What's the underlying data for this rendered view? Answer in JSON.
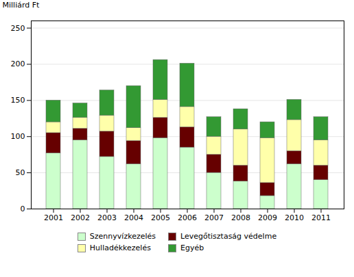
{
  "chart_data": {
    "type": "bar",
    "stacked": true,
    "ylabel": "Milliárd Ft",
    "categories": [
      "2001",
      "2002",
      "2003",
      "2004",
      "2005",
      "2006",
      "2007",
      "2008",
      "2009",
      "2010",
      "2011"
    ],
    "series": [
      {
        "name": "Szennyvízkezelés",
        "color": "#ccffcc",
        "values": [
          77,
          95,
          72,
          62,
          98,
          85,
          50,
          38,
          18,
          62,
          40
        ]
      },
      {
        "name": "Levegőtisztaság védelme",
        "color": "#660000",
        "values": [
          28,
          16,
          35,
          32,
          28,
          28,
          25,
          22,
          18,
          18,
          20
        ]
      },
      {
        "name": "Hulladékkezelés",
        "color": "#ffffaa",
        "values": [
          15,
          15,
          22,
          18,
          25,
          28,
          25,
          50,
          62,
          43,
          35
        ]
      },
      {
        "name": "Egyéb",
        "color": "#339933",
        "values": [
          30,
          20,
          35,
          58,
          55,
          60,
          27,
          28,
          22,
          28,
          32
        ]
      }
    ],
    "ylim": [
      0,
      260
    ],
    "yticks": [
      0,
      50,
      100,
      150,
      200,
      250
    ],
    "grid": true,
    "legend": "bottom"
  }
}
